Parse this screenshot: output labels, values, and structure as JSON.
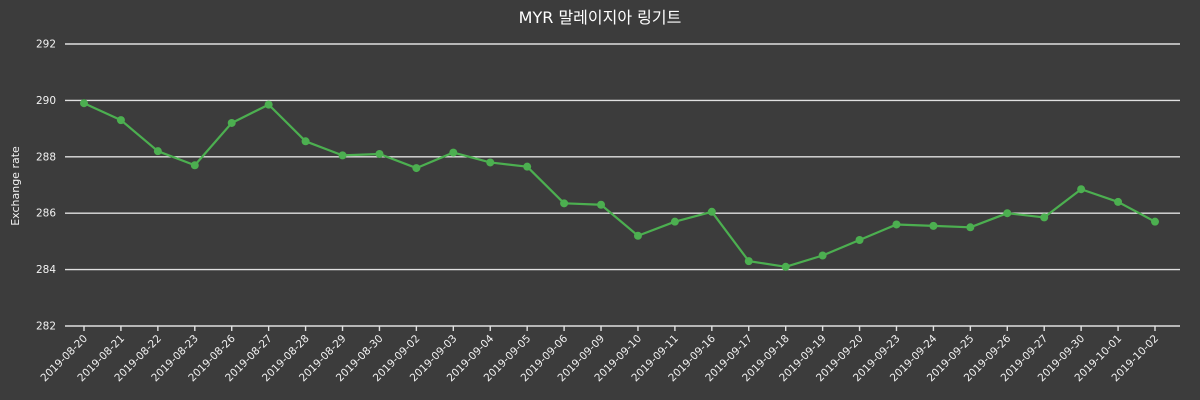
{
  "chart_data": {
    "type": "line",
    "title": "MYR 말레이지아 링기트",
    "xlabel": "",
    "ylabel": "Exchange rate",
    "ylim": [
      282,
      292
    ],
    "yticks": [
      282,
      284,
      286,
      288,
      290,
      292
    ],
    "grid": true,
    "legend_position": "none",
    "line_color": "#4caf50",
    "marker": "circle",
    "background_color": "#3c3c3c",
    "text_color": "#ffffff",
    "categories": [
      "2019-08-20",
      "2019-08-21",
      "2019-08-22",
      "2019-08-23",
      "2019-08-26",
      "2019-08-27",
      "2019-08-28",
      "2019-08-29",
      "2019-08-30",
      "2019-09-02",
      "2019-09-03",
      "2019-09-04",
      "2019-09-05",
      "2019-09-06",
      "2019-09-09",
      "2019-09-10",
      "2019-09-11",
      "2019-09-16",
      "2019-09-17",
      "2019-09-18",
      "2019-09-19",
      "2019-09-20",
      "2019-09-23",
      "2019-09-24",
      "2019-09-25",
      "2019-09-26",
      "2019-09-27",
      "2019-09-30",
      "2019-10-01",
      "2019-10-02"
    ],
    "values": [
      289.9,
      289.3,
      288.2,
      287.7,
      289.2,
      289.85,
      288.55,
      288.05,
      288.1,
      287.6,
      288.15,
      287.8,
      287.65,
      286.35,
      286.3,
      285.2,
      285.7,
      286.05,
      284.3,
      284.1,
      284.5,
      285.05,
      285.6,
      285.55,
      285.5,
      286.0,
      285.85,
      286.85,
      286.4,
      285.7
    ]
  }
}
